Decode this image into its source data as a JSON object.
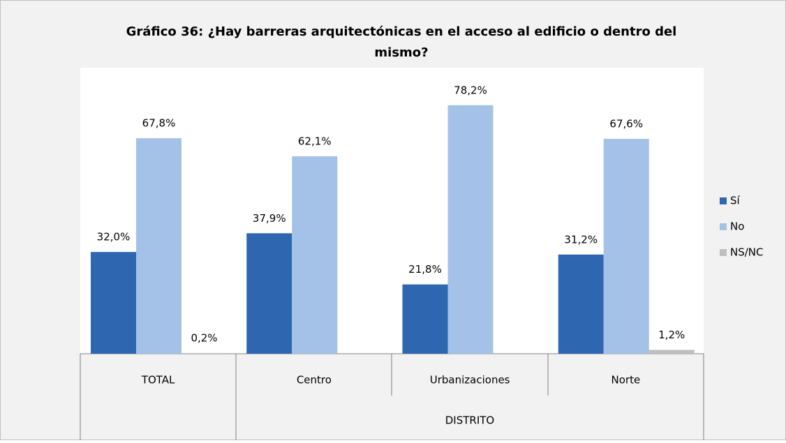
{
  "chart_data": {
    "type": "bar",
    "title": "Gráfico 36: ¿Hay barreras arquitectónicas en el acceso al edificio o dentro del",
    "title_line2": "mismo?",
    "categories": [
      "TOTAL",
      "Centro",
      "Urbanizaciones",
      "Norte"
    ],
    "group_label": "DISTRITO",
    "ylim": [
      0,
      90
    ],
    "series": [
      {
        "name": "Sí",
        "color": "#2e66b0",
        "values": [
          32.0,
          37.9,
          21.8,
          31.2
        ],
        "value_labels": [
          "32,0%",
          "37,9%",
          "21,8%",
          "31,2%"
        ]
      },
      {
        "name": "No",
        "color": "#a4c2e8",
        "values": [
          67.8,
          62.1,
          78.2,
          67.6
        ],
        "value_labels": [
          "67,8%",
          "62,1%",
          "78,2%",
          "67,6%"
        ]
      },
      {
        "name": "NS/NC",
        "color": "#bfbfbf",
        "values": [
          0.2,
          null,
          null,
          1.2
        ],
        "value_labels": [
          "0,2%",
          null,
          null,
          "1,2%"
        ]
      }
    ],
    "legend": "right"
  }
}
